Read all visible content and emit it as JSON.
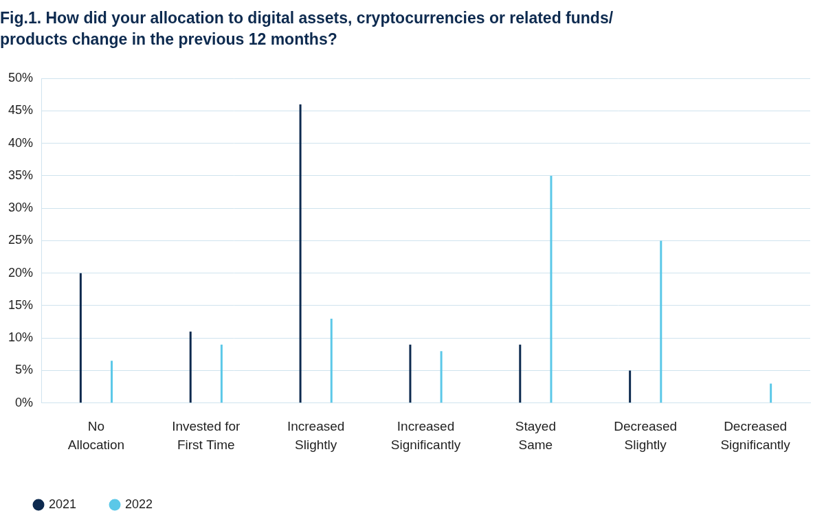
{
  "chart_data": {
    "type": "bar",
    "title": [
      "Fig.1. How did your allocation to digital assets, cryptocurrencies or related funds/",
      "products change in the previous 12 months?"
    ],
    "categories": [
      [
        "No",
        "Allocation"
      ],
      [
        "Invested for",
        "First Time"
      ],
      [
        "Increased",
        "Slightly"
      ],
      [
        "Increased",
        "Significantly"
      ],
      [
        "Stayed",
        "Same"
      ],
      [
        "Decreased",
        "Slightly"
      ],
      [
        "Decreased",
        "Significantly"
      ]
    ],
    "series": [
      {
        "name": "2021",
        "color": "#0d2a4f",
        "values": [
          20,
          11,
          46,
          9,
          9,
          5,
          0
        ]
      },
      {
        "name": "2022",
        "color": "#5bc8e8",
        "values": [
          6.5,
          9,
          13,
          8,
          35,
          25,
          3
        ]
      }
    ],
    "ylim": [
      0,
      50
    ],
    "yticks": [
      {
        "value": 0,
        "label": "0%"
      },
      {
        "value": 5,
        "label": "5%"
      },
      {
        "value": 10,
        "label": "10%"
      },
      {
        "value": 15,
        "label": "15%"
      },
      {
        "value": 20,
        "label": "20%"
      },
      {
        "value": 25,
        "label": "25%"
      },
      {
        "value": 30,
        "label": "30%"
      },
      {
        "value": 35,
        "label": "35%"
      },
      {
        "value": 40,
        "label": "40%"
      },
      {
        "value": 45,
        "label": "45%"
      },
      {
        "value": 50,
        "label": "50%"
      }
    ],
    "grid": true,
    "legend": "bottom left"
  }
}
